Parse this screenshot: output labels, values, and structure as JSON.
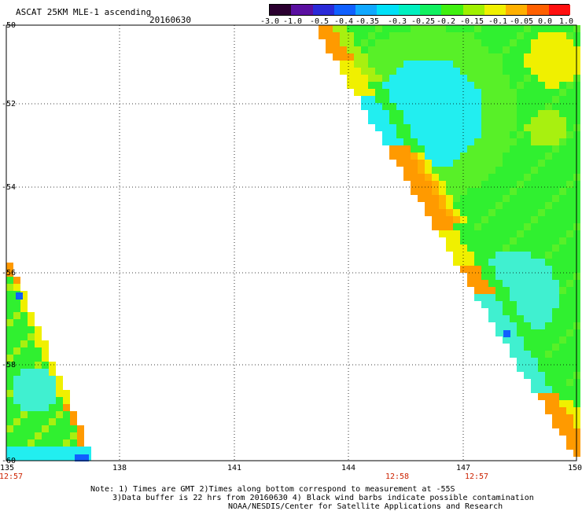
{
  "header": {
    "title": "ASCAT 25KM MLE-1 ascending",
    "date": "20160630"
  },
  "colorbar": {
    "labels": [
      "-3.0",
      "-1.0",
      "-0.5",
      "-0.4",
      "-0.35",
      "-0.3",
      "-0.25",
      "-0.2",
      "-0.15",
      "-0.1",
      "-0.05",
      "0.0",
      "1.0"
    ],
    "colors": [
      "#2b0030",
      "#5a0fa0",
      "#2a2ad8",
      "#1060ff",
      "#10a8ff",
      "#00e0f8",
      "#00f0c0",
      "#10f060",
      "#40f010",
      "#a0f000",
      "#f0f000",
      "#ffb000",
      "#ff6000",
      "#ff1010"
    ]
  },
  "axes": {
    "lat_labels": [
      "-50",
      "-52",
      "-54",
      "-56",
      "-58",
      "-60"
    ],
    "lon_labels": [
      "135",
      "138",
      "141",
      "144",
      "147",
      "150"
    ]
  },
  "pass_times": [
    "12:57",
    "12:58",
    "12:57"
  ],
  "notes": {
    "line1": "Note: 1) Times are GMT 2)Times along bottom correspond to measurement at -55S",
    "line2": "3)Data buffer is 22 hrs from 20160630 4) Black wind barbs indicate possible contamination",
    "line3": "NOAA/NESDIS/Center for Satellite Applications and Research"
  }
}
